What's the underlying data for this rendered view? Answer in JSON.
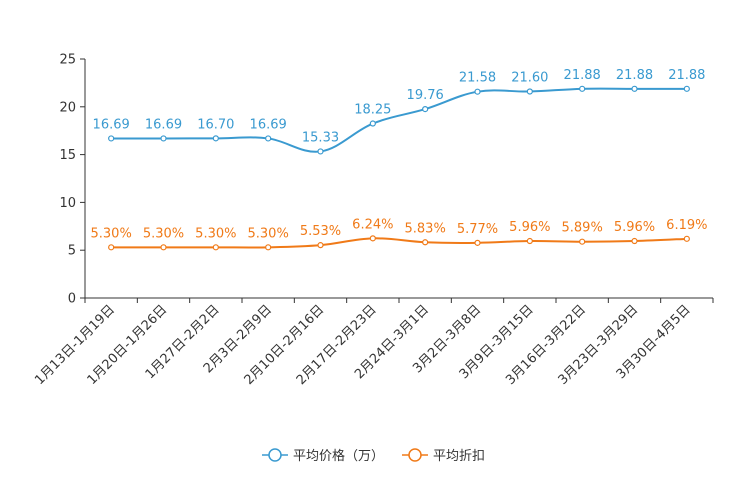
{
  "chart_data": {
    "type": "line",
    "title": "",
    "xlabel": "",
    "ylabel": "",
    "ylim": [
      0,
      25
    ],
    "yticks": [
      0,
      5,
      10,
      15,
      20,
      25
    ],
    "grid": false,
    "legend_position": "bottom-center",
    "categories": [
      "1月13日-1月19日",
      "1月20日-1月26日",
      "1月27日-2月2日",
      "2月3日-2月9日",
      "2月10日-2月16日",
      "2月17日-2月23日",
      "2月24日-3月1日",
      "3月2日-3月8日",
      "3月9日-3月15日",
      "3月16日-3月22日",
      "3月23日-3月29日",
      "3月30日-4月5日"
    ],
    "series": [
      {
        "name": "平均价格（万）",
        "color": "#3a9ad0",
        "values": [
          16.69,
          16.69,
          16.7,
          16.69,
          15.33,
          18.25,
          19.76,
          21.58,
          21.6,
          21.88,
          21.88,
          21.88
        ],
        "labels": [
          "16.69",
          "16.69",
          "16.70",
          "16.69",
          "15.33",
          "18.25",
          "19.76",
          "21.58",
          "21.60",
          "21.88",
          "21.88",
          "21.88"
        ]
      },
      {
        "name": "平均折扣",
        "color": "#f07a18",
        "values": [
          5.3,
          5.3,
          5.3,
          5.3,
          5.53,
          6.24,
          5.83,
          5.77,
          5.96,
          5.89,
          5.96,
          6.19
        ],
        "labels": [
          "5.30%",
          "5.30%",
          "5.30%",
          "5.30%",
          "5.53%",
          "6.24%",
          "5.83%",
          "5.77%",
          "5.96%",
          "5.89%",
          "5.96%",
          "6.19%"
        ]
      }
    ]
  }
}
